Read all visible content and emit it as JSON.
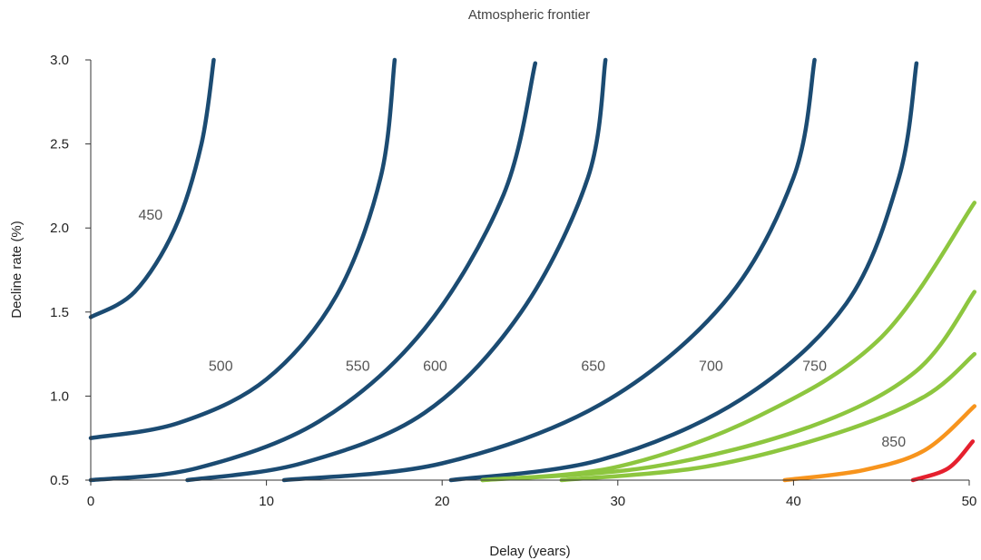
{
  "chart_data": {
    "type": "line",
    "title": "Atmospheric frontier",
    "xlabel": "Delay (years)",
    "ylabel": "Decline rate (%)",
    "xlim": [
      0,
      50
    ],
    "ylim": [
      0.5,
      3.0
    ],
    "xticks": [
      "0",
      "10",
      "20",
      "30",
      "40",
      "50"
    ],
    "yticks": [
      "0.5",
      "1.0",
      "1.5",
      "2.0",
      "2.5",
      "3.0"
    ],
    "grid": false,
    "colors": {
      "dark": "#1b4b72",
      "green": "#8dc63f",
      "orange": "#f7941d",
      "red": "#e5202e"
    },
    "series": [
      {
        "label": "450",
        "color": "#1b4b72",
        "x": [
          0,
          2.5,
          4.8,
          6.3,
          7.0
        ],
        "y": [
          1.47,
          1.62,
          2.0,
          2.5,
          3.0
        ],
        "label_at": [
          3.4,
          2.05
        ]
      },
      {
        "label": "500",
        "color": "#1b4b72",
        "x": [
          0,
          5,
          10,
          14,
          16.5,
          17.3
        ],
        "y": [
          0.75,
          0.84,
          1.1,
          1.6,
          2.3,
          3.0
        ],
        "label_at": [
          7.4,
          1.15
        ]
      },
      {
        "label": "550",
        "color": "#1b4b72",
        "x": [
          0,
          6,
          13,
          19,
          23.5,
          25.3
        ],
        "y": [
          0.5,
          0.57,
          0.85,
          1.4,
          2.2,
          2.98
        ],
        "label_at": [
          15.2,
          1.15
        ]
      },
      {
        "label": "600",
        "color": "#1b4b72",
        "x": [
          5.5,
          12,
          19,
          24.5,
          28.3,
          29.3
        ],
        "y": [
          0.5,
          0.6,
          0.9,
          1.5,
          2.3,
          3.0
        ],
        "label_at": [
          19.6,
          1.15
        ]
      },
      {
        "label": "650",
        "color": "#1b4b72",
        "x": [
          11,
          20,
          29,
          36,
          40,
          41.2
        ],
        "y": [
          0.5,
          0.6,
          0.95,
          1.55,
          2.3,
          3.0
        ],
        "label_at": [
          28.6,
          1.15
        ]
      },
      {
        "label": "700",
        "color": "#1b4b72",
        "x": [
          20.5,
          29,
          37,
          43,
          46,
          47.0
        ],
        "y": [
          0.5,
          0.62,
          0.98,
          1.55,
          2.3,
          2.98
        ],
        "label_at": [
          35.3,
          1.15
        ]
      },
      {
        "label": "750",
        "color": "#8dc63f",
        "x": [
          22.3,
          30,
          38,
          45,
          50.3
        ],
        "y": [
          0.5,
          0.58,
          0.88,
          1.35,
          2.15
        ],
        "label_at": [
          41.2,
          1.15
        ]
      },
      {
        "label": "",
        "color": "#8dc63f",
        "x": [
          22.3,
          32,
          41,
          47,
          50.3
        ],
        "y": [
          0.5,
          0.58,
          0.82,
          1.15,
          1.62
        ]
      },
      {
        "label": "",
        "color": "#8dc63f",
        "x": [
          26.8,
          35,
          42.5,
          47.5,
          50.3
        ],
        "y": [
          0.5,
          0.58,
          0.78,
          1.0,
          1.25
        ]
      },
      {
        "label": "850",
        "color": "#f7941d",
        "x": [
          39.5,
          44,
          47.5,
          50.3
        ],
        "y": [
          0.5,
          0.56,
          0.68,
          0.94
        ],
        "label_at": [
          45.7,
          0.7
        ]
      },
      {
        "label": "",
        "color": "#e5202e",
        "x": [
          46.8,
          48.8,
          50.2
        ],
        "y": [
          0.5,
          0.57,
          0.73
        ]
      }
    ]
  }
}
